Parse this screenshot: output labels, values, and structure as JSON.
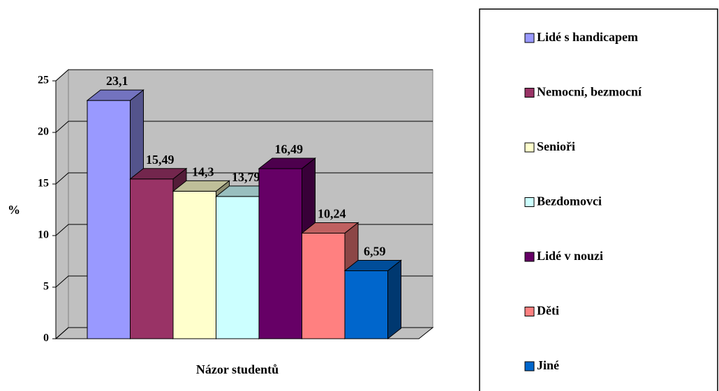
{
  "chart_data": {
    "type": "bar",
    "xlabel": "Názor studentů",
    "ylabel": "%",
    "ylim": [
      0,
      25
    ],
    "yticks": [
      0,
      5,
      10,
      15,
      20,
      25
    ],
    "grid": true,
    "series": [
      {
        "name": "Lidé s handicapem",
        "color": "#9999ff",
        "values": [
          23.1
        ],
        "value_labels": [
          "23,1"
        ]
      },
      {
        "name": "Nemocní, bezmocní",
        "color": "#993366",
        "values": [
          15.49
        ],
        "value_labels": [
          "15,49"
        ]
      },
      {
        "name": "Senioři",
        "color": "#ffffcc",
        "values": [
          14.3
        ],
        "value_labels": [
          "14,3"
        ]
      },
      {
        "name": "Bezdomovci",
        "color": "#ccffff",
        "values": [
          13.79
        ],
        "value_labels": [
          "13,79"
        ]
      },
      {
        "name": "Lidé v nouzi",
        "color": "#660066",
        "values": [
          16.49
        ],
        "value_labels": [
          "16,49"
        ]
      },
      {
        "name": "Děti",
        "color": "#ff8080",
        "values": [
          10.24
        ],
        "value_labels": [
          "10,24"
        ]
      },
      {
        "name": "Jiné",
        "color": "#0066cc",
        "values": [
          6.59
        ],
        "value_labels": [
          "6,59"
        ]
      }
    ]
  }
}
